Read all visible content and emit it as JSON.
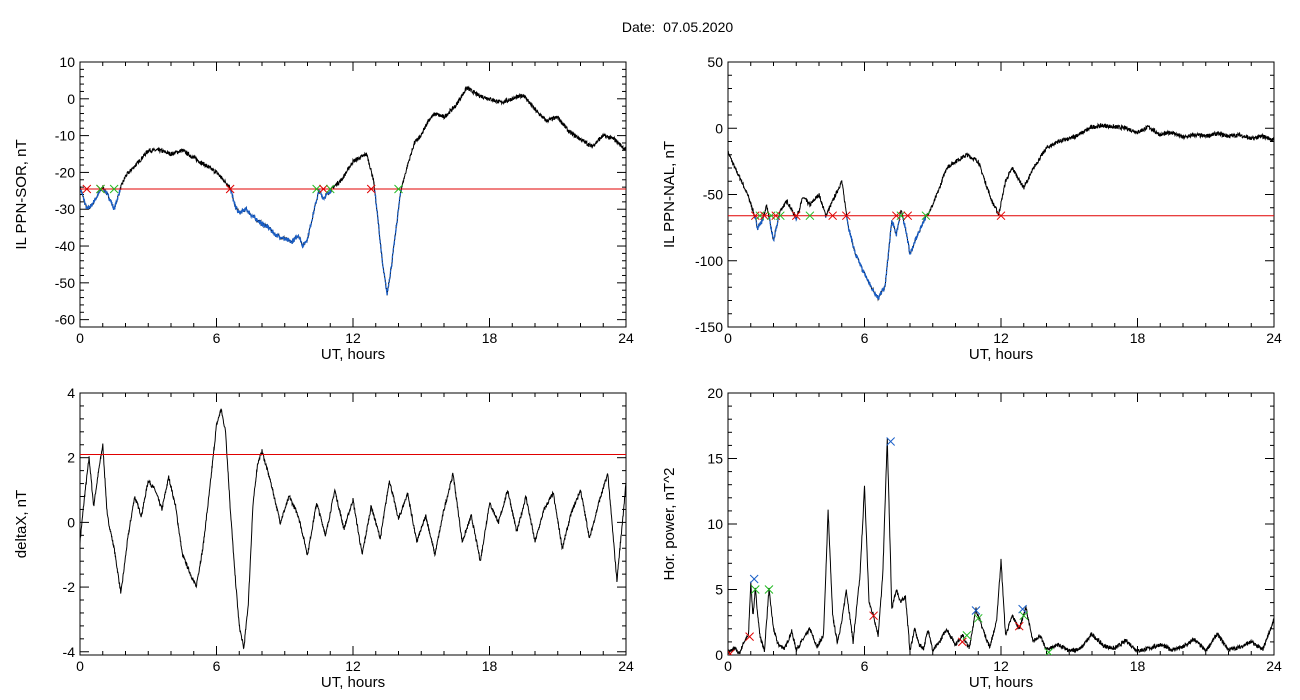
{
  "header": {
    "date_label": "Date:",
    "date_value": "07.05.2020"
  },
  "colors": {
    "data_line": "#000000",
    "threshold_line": "#e00000",
    "below_threshold": "#1a5fc8",
    "marker_red": "#e00000",
    "marker_green": "#22bb22",
    "marker_blue": "#1a5fc8"
  },
  "chart_data": [
    {
      "id": "sor",
      "type": "line",
      "title": "",
      "xlabel": "UT, hours",
      "ylabel": "IL PPN-SOR, nT",
      "xlim": [
        0,
        24
      ],
      "ylim": [
        -62,
        10
      ],
      "xticks": [
        0,
        6,
        12,
        18,
        24
      ],
      "yticks": [
        10,
        0,
        -10,
        -20,
        -30,
        -40,
        -50,
        -60
      ],
      "threshold": -24.5,
      "highlight_below_threshold": true,
      "series": [
        {
          "x": [
            0,
            0.3,
            0.5,
            0.8,
            1.0,
            1.3,
            1.5,
            1.8,
            2.0,
            2.3,
            2.6,
            3.0,
            3.5,
            4.0,
            4.5,
            5.0,
            5.5,
            6.0,
            6.3,
            6.6,
            6.8,
            7.0,
            7.3,
            7.6,
            8.0,
            8.3,
            8.6,
            9.0,
            9.3,
            9.6,
            9.8,
            10.0,
            10.3,
            10.5,
            10.7,
            11.0,
            11.3,
            11.5,
            11.8,
            12.0,
            12.3,
            12.6,
            12.9,
            13.1,
            13.3,
            13.5,
            13.7,
            13.9,
            14.1,
            14.4,
            14.7,
            15.0,
            15.3,
            15.6,
            16.0,
            16.5,
            17.0,
            17.5,
            18.0,
            18.5,
            19.0,
            19.5,
            20.0,
            20.5,
            21.0,
            21.5,
            22.0,
            22.5,
            23.0,
            23.5,
            24.0
          ],
          "y": [
            -24,
            -30,
            -29,
            -26,
            -24,
            -27,
            -30,
            -24,
            -21,
            -19,
            -17,
            -14,
            -14,
            -15,
            -14,
            -16,
            -18,
            -20,
            -22,
            -24,
            -29,
            -31,
            -30,
            -32,
            -34,
            -35,
            -37,
            -38,
            -39,
            -37,
            -40,
            -38,
            -30,
            -25,
            -27,
            -25,
            -23,
            -22,
            -19,
            -17,
            -16,
            -15,
            -22,
            -33,
            -45,
            -53,
            -45,
            -35,
            -25,
            -18,
            -12,
            -10,
            -6,
            -4,
            -5,
            -2,
            3,
            1,
            0,
            -1,
            0,
            1,
            -3,
            -6,
            -5,
            -9,
            -11,
            -13,
            -10,
            -11,
            -14
          ]
        }
      ],
      "markers": [
        {
          "x": 0.3,
          "y": -24.5,
          "color": "red"
        },
        {
          "x": 0.9,
          "y": -24.5,
          "color": "red"
        },
        {
          "x": 0.9,
          "y": -24.5,
          "color": "green"
        },
        {
          "x": 1.5,
          "y": -24.5,
          "color": "green"
        },
        {
          "x": 6.6,
          "y": -24.5,
          "color": "red"
        },
        {
          "x": 10.4,
          "y": -24.5,
          "color": "green"
        },
        {
          "x": 10.7,
          "y": -24.5,
          "color": "red"
        },
        {
          "x": 11.0,
          "y": -24.5,
          "color": "green"
        },
        {
          "x": 12.8,
          "y": -24.5,
          "color": "red"
        },
        {
          "x": 14.0,
          "y": -24.5,
          "color": "green"
        }
      ]
    },
    {
      "id": "nal",
      "type": "line",
      "title": "",
      "xlabel": "UT, hours",
      "ylabel": "IL PPN-NAL, nT",
      "xlim": [
        0,
        24
      ],
      "ylim": [
        -150,
        50
      ],
      "xticks": [
        0,
        6,
        12,
        18,
        24
      ],
      "yticks": [
        50,
        0,
        -50,
        -100,
        -150
      ],
      "threshold": -66,
      "highlight_below_threshold": true,
      "series": [
        {
          "x": [
            0,
            0.3,
            0.6,
            0.9,
            1.1,
            1.3,
            1.5,
            1.7,
            2.0,
            2.3,
            2.6,
            3.0,
            3.3,
            3.6,
            4.0,
            4.3,
            4.6,
            5.0,
            5.3,
            5.6,
            6.0,
            6.3,
            6.6,
            6.9,
            7.2,
            7.4,
            7.6,
            7.8,
            8.0,
            8.3,
            8.6,
            9.0,
            9.3,
            9.6,
            10.0,
            10.5,
            11.0,
            11.3,
            11.6,
            11.9,
            12.2,
            12.5,
            13.0,
            13.5,
            14.0,
            14.5,
            15.0,
            15.5,
            16.0,
            16.5,
            17.0,
            17.5,
            18.0,
            18.5,
            19.0,
            19.5,
            20.0,
            20.5,
            21.0,
            21.5,
            22.0,
            22.5,
            23.0,
            23.5,
            24.0
          ],
          "y": [
            -18,
            -30,
            -40,
            -52,
            -62,
            -75,
            -70,
            -58,
            -85,
            -62,
            -55,
            -68,
            -52,
            -58,
            -50,
            -66,
            -55,
            -40,
            -75,
            -95,
            -110,
            -120,
            -128,
            -120,
            -70,
            -80,
            -62,
            -75,
            -95,
            -82,
            -70,
            -58,
            -45,
            -30,
            -25,
            -20,
            -25,
            -40,
            -55,
            -65,
            -40,
            -30,
            -45,
            -28,
            -15,
            -10,
            -8,
            -4,
            1,
            2,
            1,
            0,
            -3,
            1,
            -5,
            -3,
            -7,
            -5,
            -6,
            -4,
            -6,
            -5,
            -8,
            -6,
            -9
          ]
        }
      ],
      "markers": [
        {
          "x": 1.2,
          "y": -66,
          "color": "red"
        },
        {
          "x": 1.4,
          "y": -66,
          "color": "green"
        },
        {
          "x": 1.6,
          "y": -66,
          "color": "red"
        },
        {
          "x": 1.9,
          "y": -66,
          "color": "green"
        },
        {
          "x": 2.1,
          "y": -66,
          "color": "red"
        },
        {
          "x": 2.3,
          "y": -66,
          "color": "green"
        },
        {
          "x": 3.0,
          "y": -66,
          "color": "red"
        },
        {
          "x": 3.6,
          "y": -66,
          "color": "green"
        },
        {
          "x": 4.6,
          "y": -66,
          "color": "red"
        },
        {
          "x": 5.2,
          "y": -66,
          "color": "red"
        },
        {
          "x": 7.4,
          "y": -66,
          "color": "red"
        },
        {
          "x": 7.6,
          "y": -66,
          "color": "green"
        },
        {
          "x": 7.9,
          "y": -66,
          "color": "red"
        },
        {
          "x": 8.7,
          "y": -66,
          "color": "green"
        },
        {
          "x": 12.0,
          "y": -66,
          "color": "red"
        }
      ]
    },
    {
      "id": "deltax",
      "type": "line",
      "title": "",
      "xlabel": "UT, hours",
      "ylabel": "deltaX, nT",
      "xlim": [
        0,
        24
      ],
      "ylim": [
        -4.1,
        4
      ],
      "xticks": [
        0,
        6,
        12,
        18,
        24
      ],
      "yticks": [
        4,
        2,
        0,
        -2,
        -4
      ],
      "threshold": 2.1,
      "highlight_below_threshold": false,
      "series": [
        {
          "x": [
            0,
            0.2,
            0.4,
            0.6,
            0.8,
            1.0,
            1.2,
            1.5,
            1.8,
            2.1,
            2.4,
            2.7,
            3.0,
            3.3,
            3.6,
            3.9,
            4.2,
            4.5,
            4.8,
            5.1,
            5.4,
            5.7,
            6.0,
            6.2,
            6.4,
            6.6,
            6.8,
            7.0,
            7.2,
            7.4,
            7.6,
            7.8,
            8.0,
            8.4,
            8.8,
            9.2,
            9.6,
            10.0,
            10.4,
            10.8,
            11.2,
            11.6,
            12.0,
            12.4,
            12.8,
            13.2,
            13.6,
            14.0,
            14.4,
            14.8,
            15.2,
            15.6,
            16.0,
            16.4,
            16.8,
            17.2,
            17.6,
            18.0,
            18.4,
            18.8,
            19.2,
            19.6,
            20.0,
            20.4,
            20.8,
            21.2,
            21.6,
            22.0,
            22.4,
            22.8,
            23.2,
            23.6,
            24.0
          ],
          "y": [
            -0.6,
            0.8,
            2.0,
            0.5,
            1.5,
            2.4,
            0.2,
            -0.8,
            -2.2,
            -0.5,
            0.8,
            0.2,
            1.3,
            1.0,
            0.4,
            1.4,
            0.5,
            -1.0,
            -1.5,
            -2.0,
            -0.8,
            1.0,
            3.0,
            3.5,
            2.8,
            0.5,
            -1.5,
            -3.2,
            -3.9,
            -2.5,
            0.5,
            1.8,
            2.2,
            1.2,
            0.0,
            0.8,
            0.2,
            -1.0,
            0.6,
            -0.4,
            1.0,
            -0.2,
            0.7,
            -1.0,
            0.5,
            -0.5,
            1.3,
            0.1,
            0.9,
            -0.6,
            0.2,
            -1.0,
            0.4,
            1.5,
            -0.6,
            0.2,
            -1.2,
            0.6,
            0.0,
            1.0,
            -0.3,
            0.8,
            -0.6,
            0.4,
            0.9,
            -0.8,
            0.3,
            1.0,
            -0.5,
            0.6,
            1.5,
            -1.8,
            1.2
          ]
        }
      ],
      "markers": []
    },
    {
      "id": "power",
      "type": "line",
      "title": "",
      "xlabel": "UT, hours",
      "ylabel": "Hor. power, nT^2",
      "xlim": [
        0,
        24
      ],
      "ylim": [
        0,
        20
      ],
      "xticks": [
        0,
        6,
        12,
        18,
        24
      ],
      "yticks": [
        20,
        15,
        10,
        5,
        0
      ],
      "threshold": null,
      "highlight_below_threshold": false,
      "series": [
        {
          "x": [
            0,
            0.3,
            0.5,
            0.7,
            0.9,
            1.0,
            1.1,
            1.2,
            1.4,
            1.6,
            1.8,
            2.0,
            2.2,
            2.5,
            2.8,
            3.0,
            3.3,
            3.6,
            3.9,
            4.2,
            4.4,
            4.6,
            4.8,
            5.0,
            5.2,
            5.5,
            5.8,
            6.0,
            6.2,
            6.4,
            6.6,
            6.8,
            7.0,
            7.2,
            7.4,
            7.6,
            7.8,
            8.0,
            8.2,
            8.4,
            8.6,
            8.8,
            9.0,
            9.3,
            9.6,
            10.0,
            10.3,
            10.6,
            10.9,
            11.2,
            11.5,
            11.8,
            12.0,
            12.2,
            12.5,
            12.8,
            13.1,
            13.4,
            13.7,
            14.0,
            14.5,
            15.0,
            15.5,
            16.0,
            16.5,
            17.0,
            17.5,
            18.0,
            18.5,
            19.0,
            19.5,
            20.0,
            20.5,
            21.0,
            21.5,
            22.0,
            22.5,
            23.0,
            23.5,
            24.0
          ],
          "y": [
            0.2,
            0.5,
            0.1,
            1.0,
            1.5,
            5.5,
            3.0,
            5.0,
            1.5,
            0.3,
            5.0,
            2.0,
            0.8,
            0.5,
            1.8,
            0.4,
            1.2,
            2.0,
            0.6,
            1.5,
            11.0,
            3.0,
            1.0,
            2.5,
            5.0,
            1.0,
            6.0,
            12.8,
            4.0,
            3.0,
            1.5,
            6.0,
            16.5,
            3.5,
            5.0,
            4.0,
            4.5,
            0.3,
            2.0,
            0.8,
            0.5,
            2.0,
            0.3,
            1.0,
            2.0,
            0.8,
            1.5,
            0.5,
            3.5,
            2.0,
            0.6,
            2.5,
            7.2,
            1.5,
            3.0,
            2.0,
            3.6,
            1.0,
            1.5,
            0.4,
            0.8,
            0.3,
            0.5,
            1.6,
            0.7,
            0.5,
            1.1,
            0.3,
            0.5,
            0.8,
            0.4,
            0.6,
            1.2,
            0.3,
            1.6,
            0.4,
            0.6,
            1.0,
            0.4,
            2.7
          ]
        }
      ],
      "markers": [
        {
          "x": 0.1,
          "y": 0.1,
          "color": "red"
        },
        {
          "x": 0.95,
          "y": 1.4,
          "color": "red"
        },
        {
          "x": 1.15,
          "y": 5.8,
          "color": "blue"
        },
        {
          "x": 1.2,
          "y": 5.0,
          "color": "green"
        },
        {
          "x": 1.8,
          "y": 5.0,
          "color": "green"
        },
        {
          "x": 6.4,
          "y": 3.0,
          "color": "red"
        },
        {
          "x": 7.15,
          "y": 16.3,
          "color": "blue"
        },
        {
          "x": 10.3,
          "y": 1.0,
          "color": "red"
        },
        {
          "x": 10.5,
          "y": 1.5,
          "color": "green"
        },
        {
          "x": 10.9,
          "y": 3.4,
          "color": "blue"
        },
        {
          "x": 11.0,
          "y": 2.8,
          "color": "green"
        },
        {
          "x": 12.8,
          "y": 2.2,
          "color": "red"
        },
        {
          "x": 12.95,
          "y": 3.5,
          "color": "blue"
        },
        {
          "x": 13.0,
          "y": 3.0,
          "color": "green"
        },
        {
          "x": 14.1,
          "y": 0.2,
          "color": "green"
        }
      ]
    }
  ]
}
